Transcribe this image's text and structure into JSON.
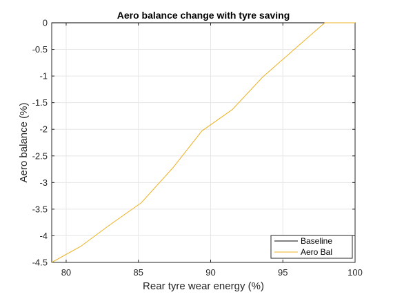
{
  "chart_data": {
    "type": "line",
    "title": "Aero balance change with tyre saving",
    "xlabel": "Rear tyre wear energy (%)",
    "ylabel": "Aero balance (%)",
    "xlim": [
      79,
      100
    ],
    "ylim": [
      -4.5,
      0
    ],
    "x_ticks": [
      80,
      85,
      90,
      95,
      100
    ],
    "x_tick_labels": [
      "80",
      "85",
      "90",
      "95",
      "100"
    ],
    "y_ticks": [
      0,
      -0.5,
      -1,
      -1.5,
      -2,
      -2.5,
      -3,
      -3.5,
      -4,
      -4.5
    ],
    "y_tick_labels": [
      "0",
      "-0.5",
      "-1",
      "-1.5",
      "-2",
      "-2.5",
      "-3",
      "-3.5",
      "-4",
      "-4.5"
    ],
    "grid": true,
    "legend_position": "bottom-right",
    "series": [
      {
        "name": "Baseline",
        "color": "#000000",
        "x": [
          79,
          100
        ],
        "y": [
          0,
          0
        ]
      },
      {
        "name": "Aero Bal",
        "color": "#EDB120",
        "x": [
          79,
          81.0,
          83.0,
          85.2,
          87.4,
          89.4,
          91.5,
          93.6,
          95.7,
          97.9,
          100
        ],
        "y": [
          -4.5,
          -4.2,
          -3.8,
          -3.38,
          -2.72,
          -2.03,
          -1.63,
          -1.02,
          -0.52,
          0,
          0
        ]
      }
    ]
  }
}
